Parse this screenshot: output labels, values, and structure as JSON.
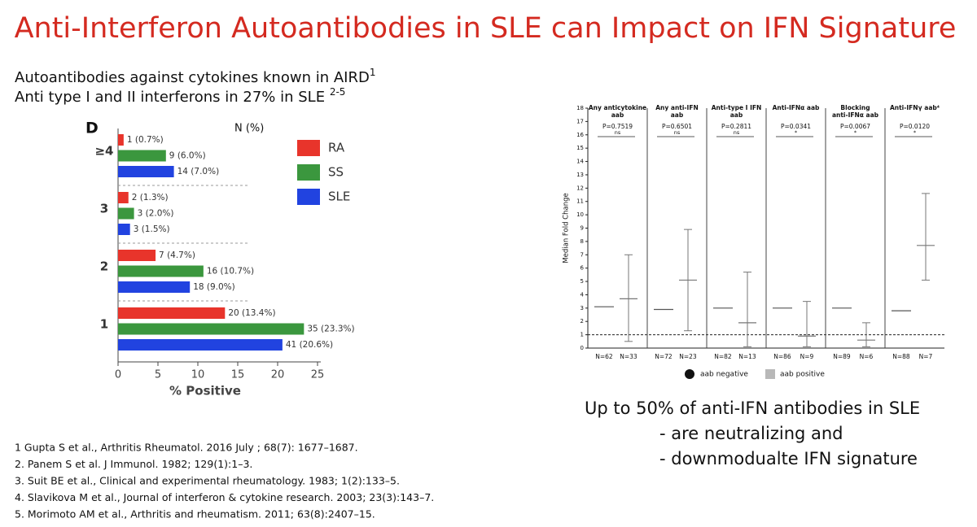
{
  "title": "Anti-Interferon Autoantibodies in SLE can Impact on IFN Signature",
  "bullets": [
    {
      "text": "Autoantibodies against cytokines known in AIRD",
      "sup": "1"
    },
    {
      "text": "Anti type I and II interferons in 27% in SLE ",
      "sup": "2-5"
    }
  ],
  "chart_data": [
    {
      "type": "hbar",
      "title": "D",
      "legend_title": "N (%)",
      "xlabel": "% Positive",
      "categories": [
        "≥4",
        "3",
        "2",
        "1"
      ],
      "series": [
        {
          "name": "RA",
          "color": "#e8342b",
          "values": [
            0.7,
            1.3,
            4.7,
            13.4
          ],
          "value_labels": [
            "1 (0.7%)",
            "2 (1.3%)",
            "7 (4.7%)",
            "20 (13.4%)"
          ]
        },
        {
          "name": "SS",
          "color": "#3b973e",
          "values": [
            6.0,
            2.0,
            10.7,
            23.3
          ],
          "value_labels": [
            "9 (6.0%)",
            "3 (2.0%)",
            "16 (10.7%)",
            "35 (23.3%)"
          ]
        },
        {
          "name": "SLE",
          "color": "#2143e0",
          "values": [
            7.0,
            1.5,
            9.0,
            20.6
          ],
          "value_labels": [
            "14 (7.0%)",
            "3 (1.5%)",
            "18 (9.0%)",
            "41 (20.6%)"
          ]
        }
      ],
      "xlim": [
        0,
        25
      ],
      "xticks": [
        0,
        5,
        10,
        15,
        20,
        25
      ]
    },
    {
      "type": "errorbar",
      "ylabel": "Median Fold Change",
      "ylim": [
        0,
        18
      ],
      "yticks": [
        0,
        1,
        2,
        3,
        4,
        5,
        6,
        7,
        8,
        9,
        10,
        11,
        12,
        13,
        14,
        15,
        16,
        17,
        18
      ],
      "reference_line": 1,
      "legend": [
        "aab negative",
        "aab positive"
      ],
      "colors": [
        "#111111",
        "#b8b8b8"
      ],
      "groups": [
        {
          "label": [
            "Any anticytokine",
            "aab"
          ],
          "p_value": "P=0.7519",
          "significance": "ns",
          "n_negative": "N=62",
          "n_positive": "N=33",
          "median_negative": 3.1,
          "median_positive": 3.7,
          "low_positive": 0.5,
          "high_positive": 7.0
        },
        {
          "label": [
            "Any anti-IFN",
            "aab"
          ],
          "p_value": "P=0.6501",
          "significance": "ns",
          "n_negative": "N=72",
          "n_positive": "N=23",
          "median_negative": 2.9,
          "median_positive": 5.1,
          "low_positive": 1.3,
          "high_positive": 8.9
        },
        {
          "label": [
            "Anti-type I IFN",
            "aab"
          ],
          "p_value": "P=0.2811",
          "significance": "ns",
          "n_negative": "N=82",
          "n_positive": "N=13",
          "median_negative": 3.0,
          "median_positive": 1.9,
          "low_positive": 0.1,
          "high_positive": 5.7
        },
        {
          "label": [
            "Anti-IFNα aab"
          ],
          "p_value": "P=0.0341",
          "significance": "*",
          "n_negative": "N=86",
          "n_positive": "N=9",
          "median_negative": 3.0,
          "median_positive": 0.9,
          "low_positive": 0.1,
          "high_positive": 3.5
        },
        {
          "label": [
            "Blocking",
            "anti-IFNα aab"
          ],
          "p_value": "P=0.0067",
          "significance": "*",
          "n_negative": "N=89",
          "n_positive": "N=6",
          "median_negative": 3.0,
          "median_positive": 0.6,
          "low_positive": 0.1,
          "high_positive": 1.9
        },
        {
          "label": [
            "Anti-IFNγ aab⁴"
          ],
          "p_value": "P=0.0120",
          "significance": "*",
          "n_negative": "N=88",
          "n_positive": "N=7",
          "median_negative": 2.8,
          "median_positive": 7.7,
          "low_positive": 5.1,
          "high_positive": 11.6
        }
      ]
    }
  ],
  "conclusion": [
    "Up to 50% of anti-IFN antibodies in SLE",
    "- are neutralizing and",
    "- downmodualte IFN signature"
  ],
  "references": [
    "1 Gupta S et al., Arthritis Rheumatol. 2016 July ; 68(7): 1677–1687.",
    "2. Panem S et al. J Immunol. 1982; 129(1):1–3.",
    "3. Suit BE et al., Clinical and experimental rheumatology. 1983; 1(2):133–5.",
    "4. Slavikova M et al., Journal of interferon & cytokine research. 2003; 23(3):143–7.",
    "5. Morimoto AM et al., Arthritis and rheumatism. 2011; 63(8):2407–15."
  ]
}
